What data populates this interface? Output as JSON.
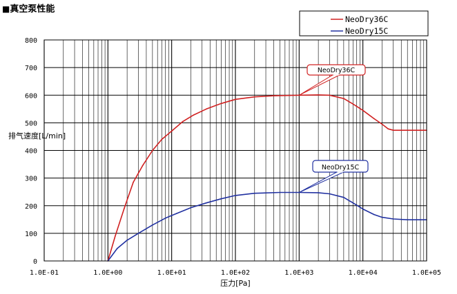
{
  "header": {
    "square": "■",
    "title": "真空泵性能"
  },
  "chart_data": {
    "type": "line",
    "title": "真空泵性能",
    "xlabel": "压力[Pa]",
    "ylabel": "排气速度[L/min]",
    "x_scale": "log",
    "xlim": [
      0.1,
      100000
    ],
    "ylim": [
      0,
      800
    ],
    "x_ticks": [
      "1.0E-01",
      "1.0E+00",
      "1.0E+01",
      "1.0E+02",
      "1.0E+03",
      "1.0E+04",
      "1.0E+05"
    ],
    "y_ticks": [
      "0",
      "100",
      "200",
      "300",
      "400",
      "500",
      "600",
      "700",
      "800"
    ],
    "grid": true,
    "legend_position": "top-right",
    "series": [
      {
        "name": "NeoDry36C",
        "color": "#d02020",
        "x": [
          1,
          1.3,
          1.8,
          2.5,
          3.5,
          5,
          7,
          10,
          15,
          22,
          35,
          60,
          100,
          200,
          400,
          1000,
          2000,
          3000,
          5000,
          7000,
          10000,
          15000,
          20000,
          25000,
          30000,
          50000,
          100000
        ],
        "y": [
          0,
          90,
          190,
          285,
          345,
          400,
          440,
          470,
          505,
          528,
          550,
          570,
          585,
          594,
          598,
          600,
          601,
          600,
          588,
          568,
          545,
          515,
          495,
          478,
          473,
          473,
          473
        ]
      },
      {
        "name": "NeoDry15C",
        "color": "#2030a0",
        "x": [
          1,
          1.4,
          2,
          3,
          5,
          8,
          12,
          20,
          35,
          60,
          100,
          200,
          500,
          1000,
          2000,
          3000,
          5000,
          7000,
          10000,
          15000,
          20000,
          30000,
          50000,
          100000
        ],
        "y": [
          0,
          45,
          75,
          100,
          130,
          155,
          172,
          193,
          210,
          225,
          237,
          245,
          248,
          248,
          247,
          243,
          230,
          210,
          188,
          168,
          158,
          152,
          149,
          149
        ]
      }
    ],
    "annotations": [
      {
        "text": "NeoDry36C",
        "series": "NeoDry36C",
        "x": 1000,
        "y": 600
      },
      {
        "text": "NeoDry15C",
        "series": "NeoDry15C",
        "x": 1000,
        "y": 248
      }
    ]
  }
}
